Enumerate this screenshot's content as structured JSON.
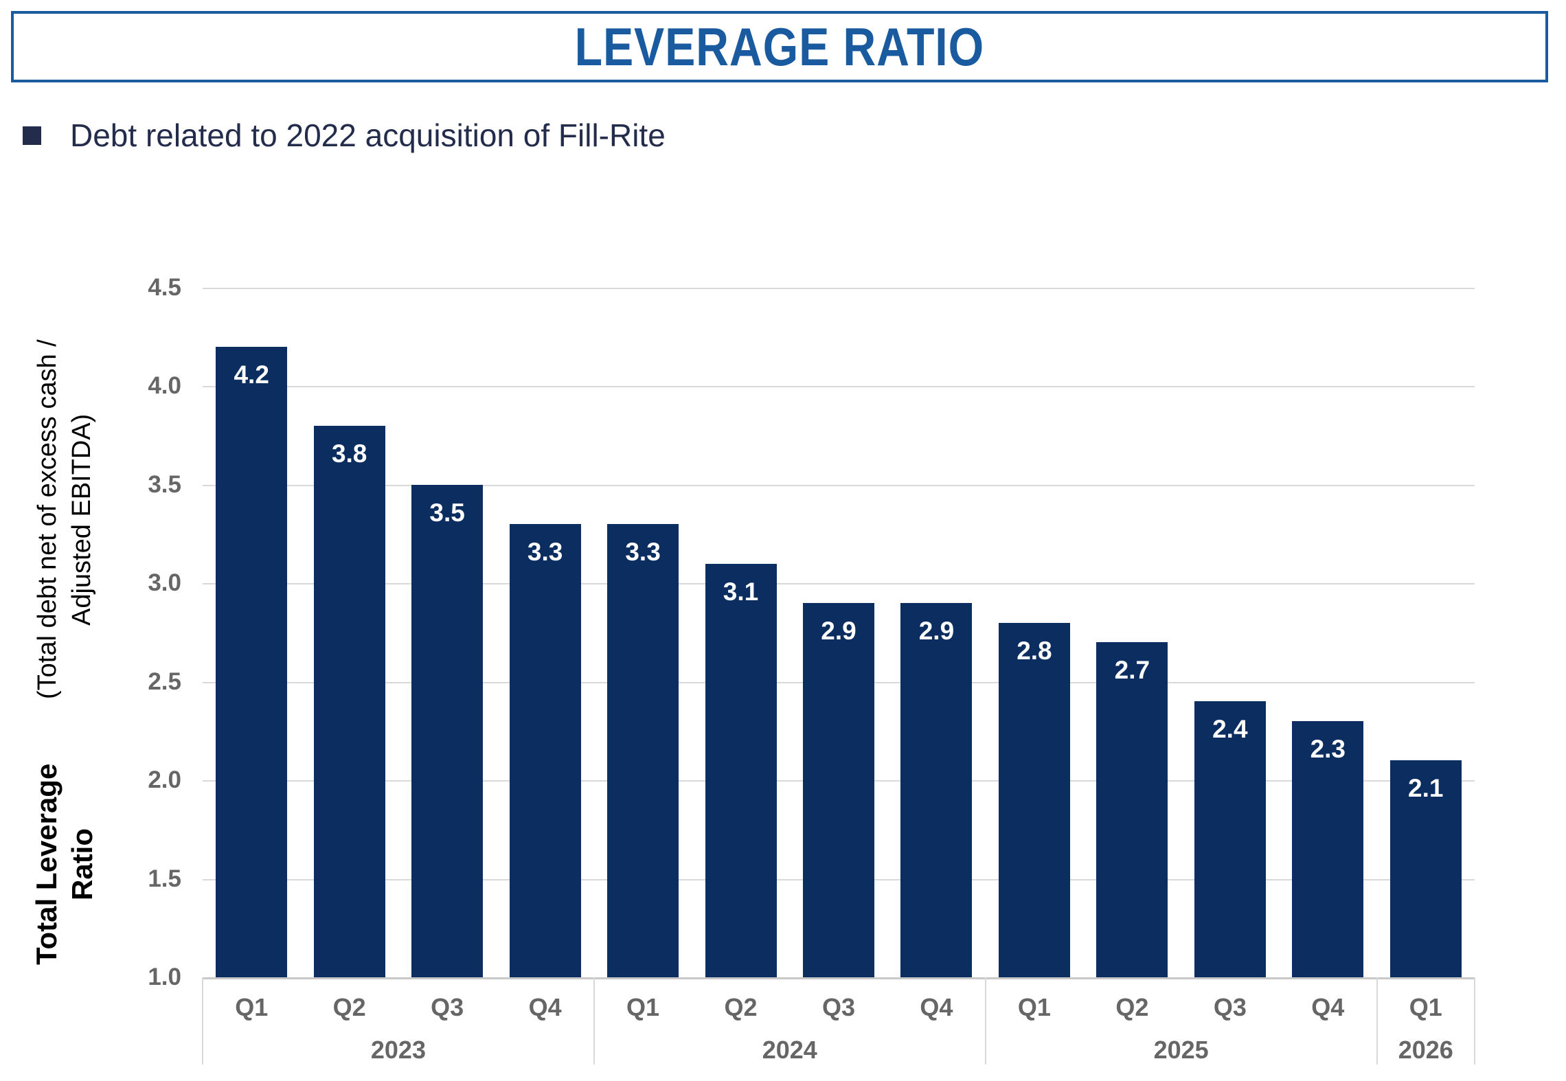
{
  "title": {
    "text": "LEVERAGE RATIO"
  },
  "bullet": {
    "text": "Debt related to 2022 acquisition of Fill-Rite"
  },
  "chart_data": {
    "type": "bar",
    "categories": [
      "Q1",
      "Q2",
      "Q3",
      "Q4",
      "Q1",
      "Q2",
      "Q3",
      "Q4",
      "Q1",
      "Q2",
      "Q3",
      "Q4",
      "Q1"
    ],
    "year_groups": [
      {
        "label": "2023",
        "count": 4
      },
      {
        "label": "2024",
        "count": 4
      },
      {
        "label": "2025",
        "count": 4
      },
      {
        "label": "2026",
        "count": 1
      }
    ],
    "values": [
      4.2,
      3.8,
      3.5,
      3.3,
      3.3,
      3.1,
      2.9,
      2.9,
      2.8,
      2.7,
      2.4,
      2.3,
      2.1
    ],
    "value_labels": [
      "4.2",
      "3.8",
      "3.5",
      "3.3",
      "3.3",
      "3.1",
      "2.9",
      "2.9",
      "2.8",
      "2.7",
      "2.4",
      "2.3",
      "2.1"
    ],
    "title": "LEVERAGE RATIO",
    "xlabel": "",
    "ylabel_main": "Total Leverage Ratio",
    "ylabel_sub": "(Total debt net of excess cash / Adjusted EBITDA)",
    "ylim": [
      1.0,
      4.5
    ],
    "ytick_step": 0.5,
    "ytick_labels": [
      "4.5",
      "4.0",
      "3.5",
      "3.0",
      "2.5",
      "2.0",
      "1.5",
      "1.0"
    ],
    "grid": true,
    "legend": false
  },
  "colors": {
    "bar": "#0B2D5F",
    "title_text": "#1A5A9E",
    "title_border": "#1A5A9E",
    "bullet_text": "#232C4B",
    "gridline": "#D9D9D9",
    "axis_label": "#666666",
    "value_label": "#FFFFFF"
  }
}
